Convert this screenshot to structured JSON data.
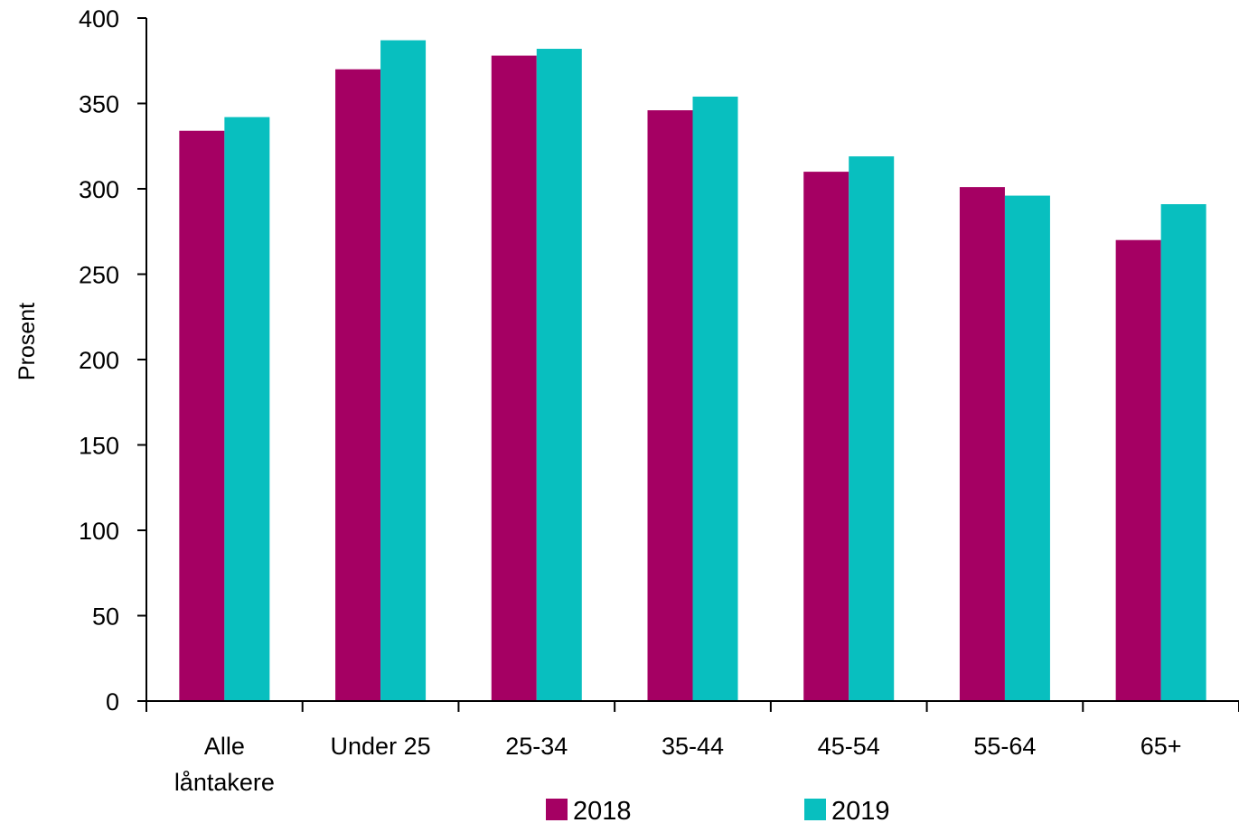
{
  "chart_data": {
    "type": "bar",
    "title": "",
    "xlabel": "",
    "ylabel": "Prosent",
    "ylim": [
      0,
      400
    ],
    "yticks": [
      0,
      50,
      100,
      150,
      200,
      250,
      300,
      350,
      400
    ],
    "categories": [
      [
        "Alle",
        "låntakere"
      ],
      [
        "Under 25"
      ],
      [
        "25-34"
      ],
      [
        "35-44"
      ],
      [
        "45-54"
      ],
      [
        "55-64"
      ],
      [
        "65+"
      ]
    ],
    "series": [
      {
        "name": "2018",
        "color": "#a50063",
        "values": [
          334,
          370,
          378,
          346,
          310,
          301,
          270
        ]
      },
      {
        "name": "2019",
        "color": "#08bfbf",
        "values": [
          342,
          387,
          382,
          354,
          319,
          296,
          291
        ]
      }
    ],
    "grid": false,
    "legend": "bottom"
  }
}
